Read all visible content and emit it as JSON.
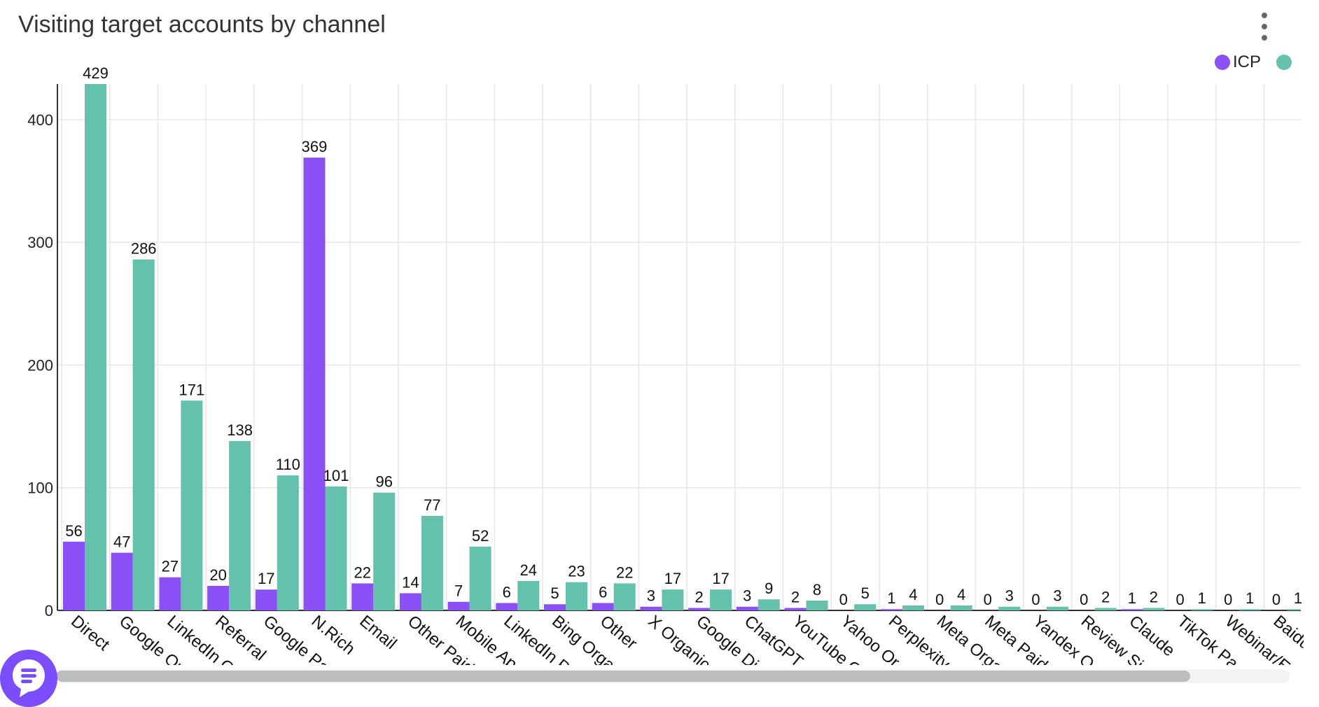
{
  "title": "Visiting target accounts by channel",
  "menu_icon": "kebab-menu-icon",
  "chat_icon": "chat-bubble-icon",
  "colors": {
    "icp": "#8b50f5",
    "total": "#63c1ac",
    "grid": "#e6e6e6",
    "axis": "#333333"
  },
  "legend": [
    {
      "label": "ICP",
      "color": "#8b50f5"
    },
    {
      "label": "",
      "color": "#63c1ac"
    }
  ],
  "chart_data": {
    "type": "bar",
    "title": "Visiting target accounts by channel",
    "xlabel": "",
    "ylabel": "",
    "ylim": [
      0,
      429
    ],
    "yticks": [
      "0",
      "100",
      "200",
      "300",
      "400"
    ],
    "grid": true,
    "legend_position": "top-right",
    "categories": [
      "Direct",
      "Google Or",
      "LinkedIn O",
      "Referral",
      "Google Pa",
      "N.Rich",
      "Email",
      "Other Paid",
      "Mobile Ap",
      "LinkedIn P",
      "Bing Orga",
      "Other",
      "X Organic",
      "Google Di",
      "ChatGPT",
      "YouTube O",
      "Yahoo Or",
      "Perplexity",
      "Meta Orga",
      "Meta Paid",
      "Yandex O",
      "Review Si",
      "Claude",
      "TikTok Pa",
      "Webinar/E",
      "Baidu"
    ],
    "series": [
      {
        "name": "ICP",
        "values": [
          56,
          47,
          27,
          20,
          17,
          369,
          22,
          14,
          7,
          6,
          5,
          6,
          3,
          2,
          3,
          2,
          0,
          1,
          0,
          0,
          0,
          0,
          1,
          0,
          0,
          0
        ]
      },
      {
        "name": "",
        "values": [
          429,
          286,
          171,
          138,
          110,
          101,
          96,
          77,
          52,
          24,
          23,
          22,
          17,
          17,
          9,
          8,
          5,
          4,
          4,
          3,
          3,
          2,
          2,
          1,
          1,
          1
        ]
      }
    ]
  }
}
